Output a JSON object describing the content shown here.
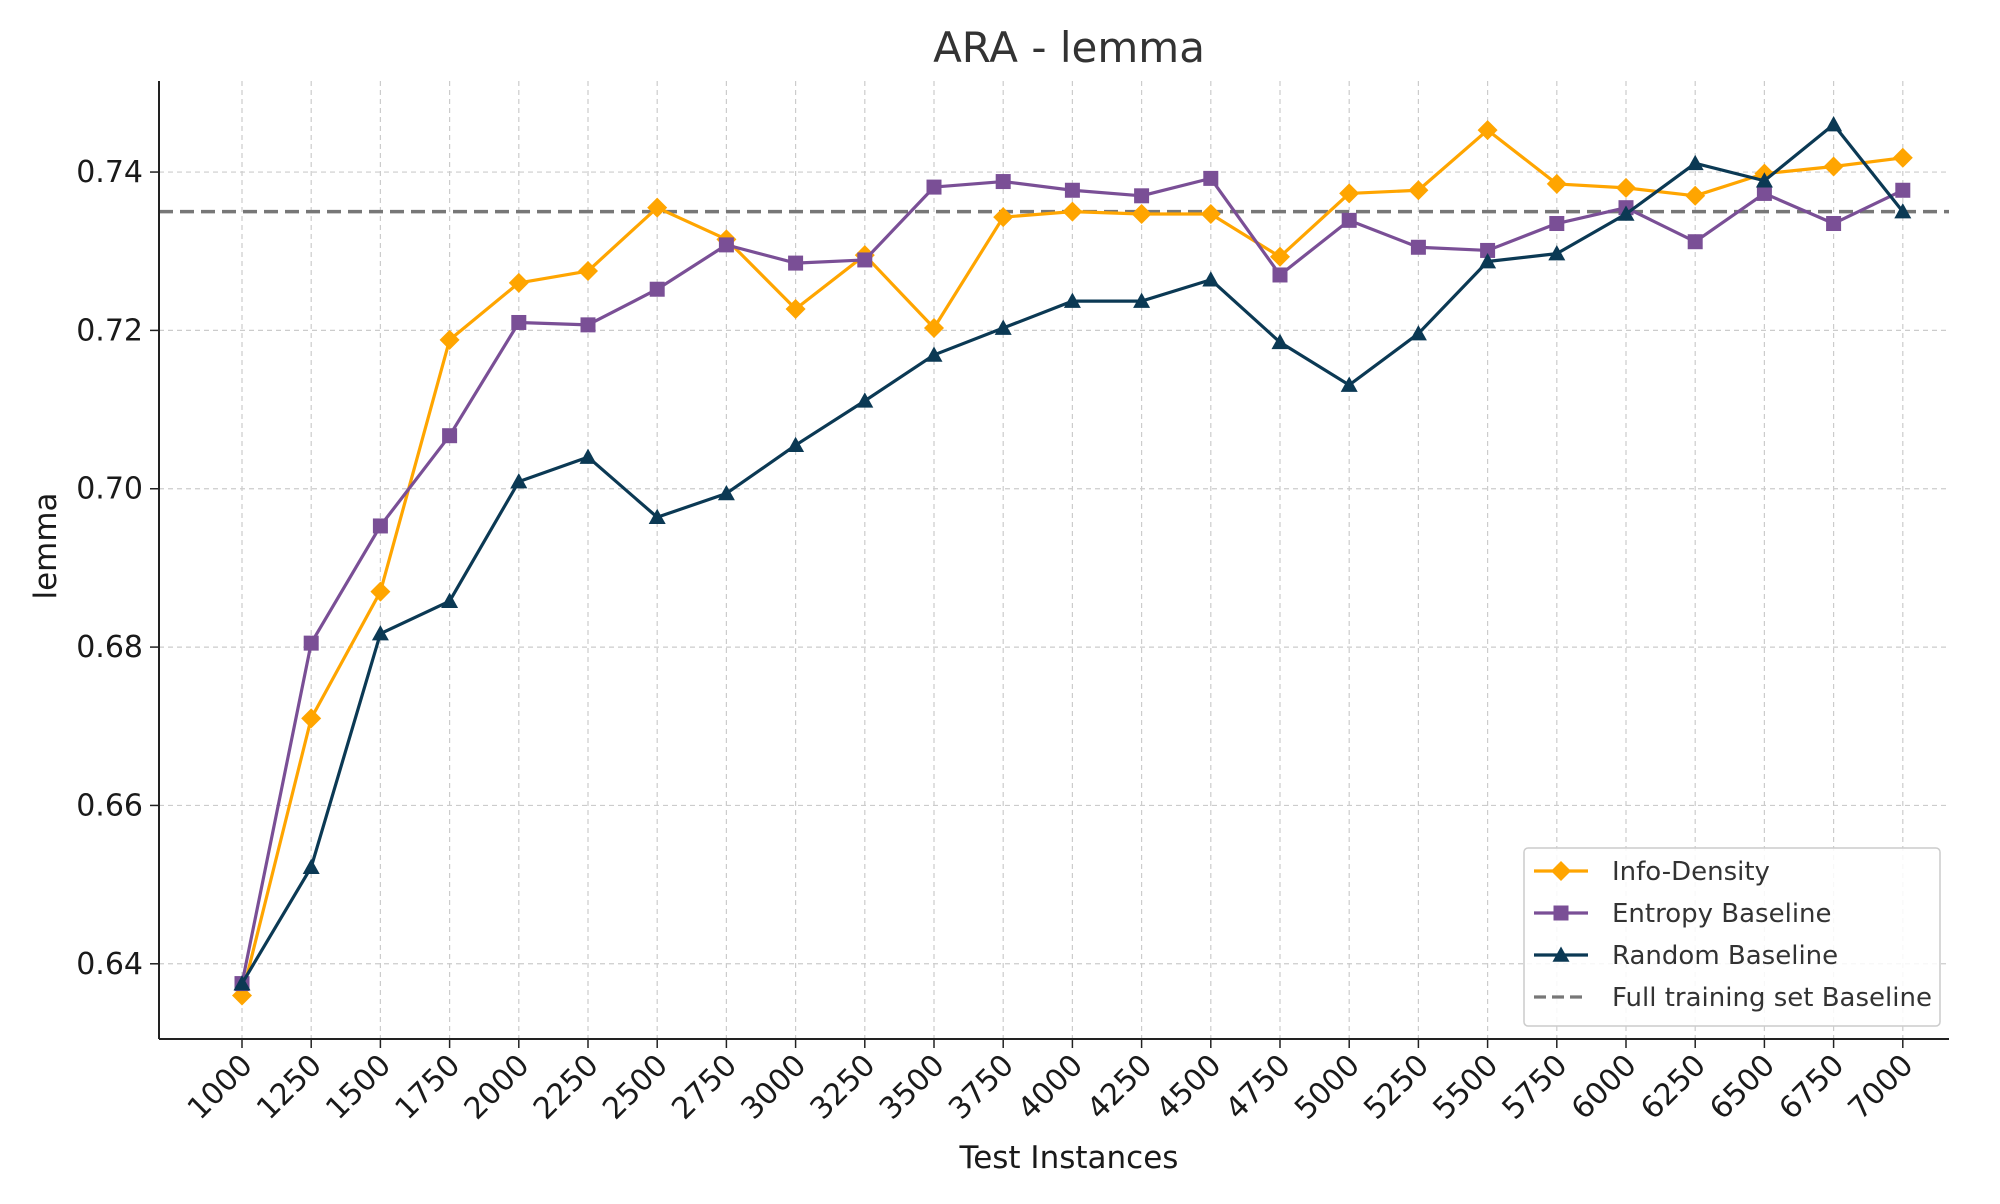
{
  "chart_data": {
    "type": "line",
    "title": "ARA - lemma",
    "xlabel": "Test Instances",
    "ylabel": "lemma",
    "x": [
      1000,
      1250,
      1500,
      1750,
      2000,
      2250,
      2500,
      2750,
      3000,
      3250,
      3500,
      3750,
      4000,
      4250,
      4500,
      4750,
      5000,
      5250,
      5500,
      5750,
      6000,
      6250,
      6500,
      6750,
      7000
    ],
    "x_tick_labels": [
      "1000",
      "1250",
      "1500",
      "1750",
      "2000",
      "2250",
      "2500",
      "2750",
      "3000",
      "3250",
      "3500",
      "3750",
      "4000",
      "4250",
      "4500",
      "4750",
      "5000",
      "5250",
      "5500",
      "5750",
      "6000",
      "6250",
      "6500",
      "6750",
      "7000"
    ],
    "y_ticks": [
      0.64,
      0.66,
      0.68,
      0.7,
      0.72,
      0.74
    ],
    "y_tick_labels": [
      "0.64",
      "0.66",
      "0.68",
      "0.70",
      "0.72",
      "0.74"
    ],
    "ylim": [
      0.6305,
      0.7515
    ],
    "grid": true,
    "legend_position": "bottom-right",
    "series": [
      {
        "name": "Info-Density",
        "color": "#FFA500",
        "marker": "diamond",
        "values": [
          0.636,
          0.671,
          0.687,
          0.7188,
          0.726,
          0.7275,
          0.7355,
          0.7315,
          0.7227,
          0.7295,
          0.7203,
          0.7343,
          0.735,
          0.7347,
          0.7347,
          0.7293,
          0.7373,
          0.7377,
          0.7453,
          0.7385,
          0.738,
          0.737,
          0.7398,
          0.7407,
          0.7418
        ]
      },
      {
        "name": "Entropy Baseline",
        "color": "#7A4F96",
        "marker": "square",
        "values": [
          0.6375,
          0.6805,
          0.6953,
          0.7067,
          0.721,
          0.7207,
          0.7252,
          0.7308,
          0.7285,
          0.7289,
          0.7381,
          0.7388,
          0.7377,
          0.737,
          0.7392,
          0.727,
          0.7339,
          0.7305,
          0.7301,
          0.7335,
          0.7355,
          0.7312,
          0.7373,
          0.7335,
          0.7377
        ]
      },
      {
        "name": "Random Baseline",
        "color": "#0B3954",
        "marker": "triangle",
        "values": [
          0.6375,
          0.6522,
          0.6817,
          0.6858,
          0.7009,
          0.704,
          0.6964,
          0.6994,
          0.7055,
          0.7111,
          0.7169,
          0.7203,
          0.7237,
          0.7237,
          0.7264,
          0.7185,
          0.7131,
          0.7196,
          0.7287,
          0.7297,
          0.7347,
          0.7411,
          0.7389,
          0.746,
          0.735
        ]
      }
    ],
    "reference_line": {
      "name": "Full training set Baseline",
      "color": "#777777",
      "style": "dashed",
      "value": 0.735
    }
  }
}
